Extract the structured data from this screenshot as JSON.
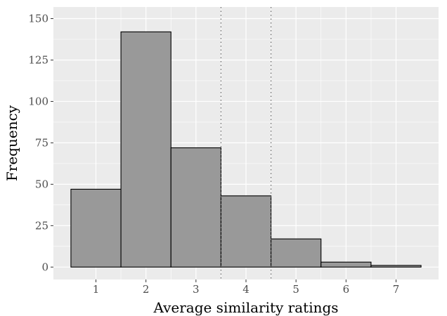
{
  "chart_data": {
    "type": "bar",
    "title": "",
    "xlabel": "Average similarity ratings",
    "ylabel": "Frequency",
    "categories": [
      "1",
      "2",
      "3",
      "4",
      "5",
      "6",
      "7"
    ],
    "values": [
      47,
      142,
      72,
      43,
      17,
      3,
      1
    ],
    "xlim": [
      0.15,
      7.85
    ],
    "ylim": [
      -7.5,
      157
    ],
    "x_ticks": [
      1,
      2,
      3,
      4,
      5,
      6,
      7
    ],
    "y_ticks": [
      0,
      25,
      50,
      75,
      100,
      125,
      150
    ],
    "reference_lines": [
      3.5,
      4.5
    ],
    "reference_line_style": "dotted",
    "grid": true,
    "legend": "none",
    "colors": {
      "panel_background": "#ebebeb",
      "grid_major": "#ffffff",
      "bar_fill": "#999999",
      "bar_outline": "#000000",
      "tick_text": "#4d4d4d",
      "reference_line": "#666666"
    }
  }
}
